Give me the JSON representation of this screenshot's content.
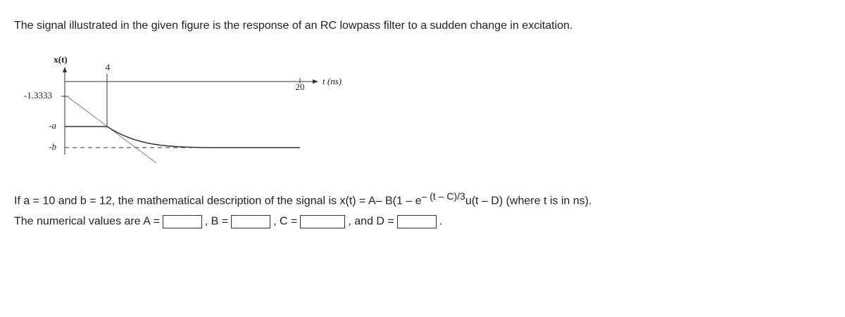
{
  "question": "The signal illustrated in the given figure is the response of an RC lowpass filter to a sudden change in excitation.",
  "figure": {
    "y_axis_label": "x(t)",
    "x_axis_label": "t (ns)",
    "tick_4": "4",
    "tick_20": "20",
    "level_1": "-1.3333",
    "level_a": "-a",
    "level_b": "-b"
  },
  "formula": {
    "before": "If a = 10 and b = 12, the mathematical description of the signal is x(t) = A– B(1 – e",
    "exponent": "– (t – C)/3",
    "after": "u(t – D) (where t is in ns)."
  },
  "prompt": {
    "intro": "The numerical values are A =",
    "b": ", B =",
    "c": ", C =",
    "d": ", and D =",
    "end": "."
  }
}
